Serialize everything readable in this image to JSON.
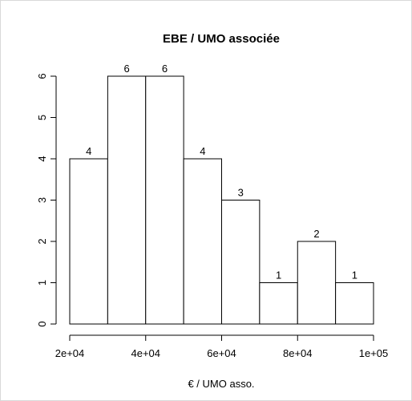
{
  "chart_data": {
    "type": "histogram",
    "title": "EBE / UMO associée",
    "x_label": "€ / UMO asso.",
    "bins": [
      20000,
      30000,
      40000,
      50000,
      60000,
      70000,
      80000,
      90000,
      100000
    ],
    "counts": [
      4,
      6,
      6,
      4,
      3,
      1,
      2,
      1
    ],
    "color": "#ffffff",
    "xlim": [
      20000,
      100000
    ],
    "xticks": [
      {
        "value": 20000,
        "label": "2e+04"
      },
      {
        "value": 40000,
        "label": "4e+04"
      },
      {
        "value": 60000,
        "label": "6e+04"
      },
      {
        "value": 80000,
        "label": "8e+04"
      },
      {
        "value": 100000,
        "label": "1e+05"
      }
    ],
    "ylim": [
      0,
      6
    ],
    "yticks": [
      0,
      1,
      2,
      3,
      4,
      5,
      6
    ]
  }
}
